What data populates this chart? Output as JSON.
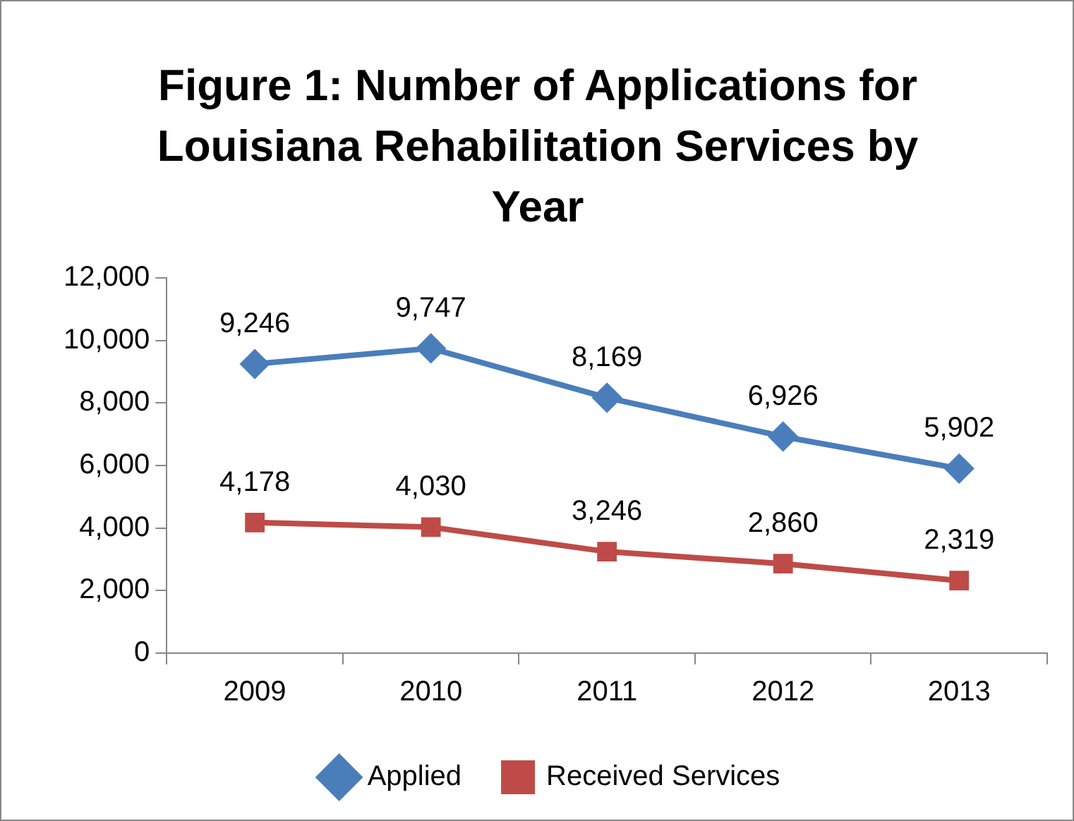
{
  "chart_data": {
    "type": "line",
    "title": "Figure 1: Number of Applications for Louisiana Rehabilitation Services by Year",
    "categories": [
      "2009",
      "2010",
      "2011",
      "2012",
      "2013"
    ],
    "series": [
      {
        "name": "Applied",
        "color": "#4a7ebb",
        "marker": "diamond",
        "values": [
          9246,
          9747,
          8169,
          6926,
          5902
        ],
        "value_labels": [
          "9,246",
          "9,747",
          "8,169",
          "6,926",
          "5,902"
        ]
      },
      {
        "name": "Received Services",
        "color": "#be4b48",
        "marker": "square",
        "values": [
          4178,
          4030,
          3246,
          2860,
          2319
        ],
        "value_labels": [
          "4,178",
          "4,030",
          "3,246",
          "2,860",
          "2,319"
        ]
      }
    ],
    "ylim": [
      0,
      12000
    ],
    "yticks": [
      0,
      {
        "value": 2000,
        "label": "2,000"
      },
      {
        "value": 4000,
        "label": "4,000"
      },
      {
        "value": 6000,
        "label": "6,000"
      },
      {
        "value": 8000,
        "label": "8,000"
      },
      {
        "value": 10000,
        "label": "10,000"
      },
      {
        "value": 12000,
        "label": "12,000"
      }
    ],
    "grid": false,
    "legend": "bottom"
  }
}
